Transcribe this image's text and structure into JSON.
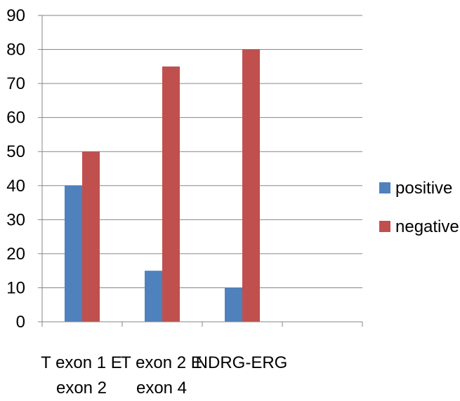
{
  "chart_data": {
    "type": "bar",
    "title": "",
    "xlabel": "",
    "ylabel": "",
    "ylim": [
      0,
      90
    ],
    "yticks": [
      0,
      10,
      20,
      30,
      40,
      50,
      60,
      70,
      80,
      90
    ],
    "grid": true,
    "legend_position": "right",
    "categories": [
      [
        "T exon 1 E",
        "exon 2"
      ],
      [
        "T exon 2 E",
        "exon 4"
      ],
      [
        "NDRG-ERG",
        ""
      ],
      [
        "",
        ""
      ]
    ],
    "series": [
      {
        "name": "positive",
        "color": "#4F81BD",
        "values": [
          40,
          15,
          10,
          null
        ]
      },
      {
        "name": "negative",
        "color": "#C0504D",
        "values": [
          50,
          75,
          80,
          null
        ]
      }
    ]
  }
}
